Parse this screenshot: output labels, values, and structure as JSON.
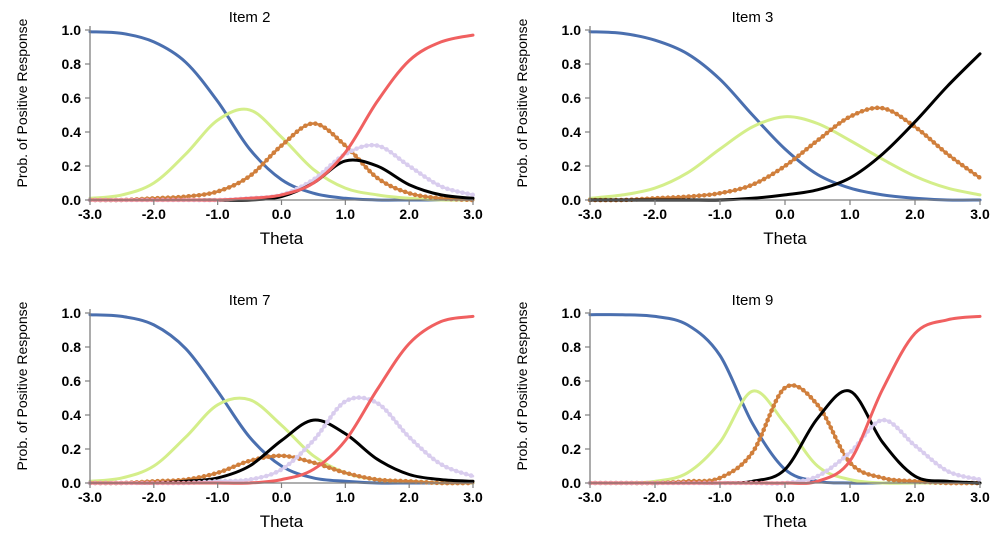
{
  "chart_data": [
    {
      "type": "line",
      "title": "Item 2",
      "xlabel": "Theta",
      "ylabel": "Prob. of Positive Response",
      "xlim": [
        -3.0,
        3.0
      ],
      "ylim": [
        0.0,
        1.0
      ],
      "xticks": [
        "-3.0",
        "-2.0",
        "-1.0",
        "0.0",
        "1.0",
        "2.0",
        "3.0"
      ],
      "yticks": [
        "0.0",
        "0.2",
        "0.4",
        "0.6",
        "0.8",
        "1.0"
      ],
      "grid": false,
      "x": [
        -3.0,
        -2.5,
        -2.0,
        -1.5,
        -1.0,
        -0.5,
        0.0,
        0.5,
        1.0,
        1.5,
        2.0,
        2.5,
        3.0
      ],
      "series": [
        {
          "color": "#4a6faf",
          "marker": "none",
          "values": [
            0.99,
            0.98,
            0.93,
            0.81,
            0.58,
            0.3,
            0.12,
            0.04,
            0.01,
            0.0,
            0.0,
            0.0,
            0.0
          ]
        },
        {
          "color": "#d4ee8a",
          "marker": "none",
          "values": [
            0.01,
            0.03,
            0.1,
            0.27,
            0.47,
            0.53,
            0.37,
            0.18,
            0.07,
            0.03,
            0.01,
            0.0,
            0.0
          ]
        },
        {
          "color": "#d07f3c",
          "marker": "dots",
          "values": [
            0.0,
            0.0,
            0.01,
            0.02,
            0.05,
            0.14,
            0.32,
            0.45,
            0.32,
            0.13,
            0.04,
            0.01,
            0.0
          ]
        },
        {
          "color": "#d9cdee",
          "marker": "dots",
          "values": [
            0.0,
            0.0,
            0.0,
            0.0,
            0.0,
            0.01,
            0.03,
            0.12,
            0.27,
            0.32,
            0.2,
            0.08,
            0.03
          ]
        },
        {
          "color": "#000000",
          "marker": "none",
          "values": [
            0.0,
            0.0,
            0.0,
            0.0,
            0.0,
            0.0,
            0.02,
            0.1,
            0.23,
            0.2,
            0.09,
            0.03,
            0.01
          ]
        },
        {
          "color": "#f06060",
          "marker": "none",
          "values": [
            0.0,
            0.0,
            0.0,
            0.0,
            0.0,
            0.01,
            0.03,
            0.1,
            0.28,
            0.58,
            0.82,
            0.93,
            0.97
          ]
        }
      ]
    },
    {
      "type": "line",
      "title": "Item 3",
      "xlabel": "Theta",
      "ylabel": "Prob. of Positive Response",
      "xlim": [
        -3.0,
        3.0
      ],
      "ylim": [
        0.0,
        1.0
      ],
      "xticks": [
        "-3.0",
        "-2.0",
        "-1.0",
        "0.0",
        "1.0",
        "2.0",
        "3.0"
      ],
      "yticks": [
        "0.0",
        "0.2",
        "0.4",
        "0.6",
        "0.8",
        "1.0"
      ],
      "grid": false,
      "x": [
        -3.0,
        -2.5,
        -2.0,
        -1.5,
        -1.0,
        -0.5,
        0.0,
        0.5,
        1.0,
        1.5,
        2.0,
        2.5,
        3.0
      ],
      "series": [
        {
          "color": "#4a6faf",
          "marker": "none",
          "values": [
            0.99,
            0.98,
            0.94,
            0.86,
            0.71,
            0.5,
            0.3,
            0.15,
            0.07,
            0.03,
            0.01,
            0.0,
            0.0
          ]
        },
        {
          "color": "#d4ee8a",
          "marker": "none",
          "values": [
            0.01,
            0.03,
            0.07,
            0.16,
            0.3,
            0.43,
            0.49,
            0.45,
            0.35,
            0.24,
            0.14,
            0.07,
            0.03
          ]
        },
        {
          "color": "#d07f3c",
          "marker": "dots",
          "values": [
            0.0,
            0.0,
            0.01,
            0.02,
            0.04,
            0.09,
            0.2,
            0.35,
            0.49,
            0.54,
            0.43,
            0.27,
            0.13
          ]
        },
        {
          "color": "#000000",
          "marker": "none",
          "values": [
            0.0,
            0.0,
            0.0,
            0.0,
            0.0,
            0.01,
            0.03,
            0.06,
            0.13,
            0.27,
            0.46,
            0.67,
            0.86
          ]
        }
      ]
    },
    {
      "type": "line",
      "title": "Item 7",
      "xlabel": "Theta",
      "ylabel": "Prob. of Positive Response",
      "xlim": [
        -3.0,
        3.0
      ],
      "ylim": [
        0.0,
        1.0
      ],
      "xticks": [
        "-3.0",
        "-2.0",
        "-1.0",
        "0.0",
        "1.0",
        "2.0",
        "3.0"
      ],
      "yticks": [
        "0.0",
        "0.2",
        "0.4",
        "0.6",
        "0.8",
        "1.0"
      ],
      "grid": false,
      "x": [
        -3.0,
        -2.5,
        -2.0,
        -1.5,
        -1.0,
        -0.5,
        0.0,
        0.5,
        1.0,
        1.5,
        2.0,
        2.5,
        3.0
      ],
      "series": [
        {
          "color": "#4a6faf",
          "marker": "none",
          "values": [
            0.99,
            0.98,
            0.93,
            0.79,
            0.54,
            0.27,
            0.1,
            0.03,
            0.01,
            0.0,
            0.0,
            0.0,
            0.0
          ]
        },
        {
          "color": "#d4ee8a",
          "marker": "none",
          "values": [
            0.01,
            0.03,
            0.1,
            0.27,
            0.46,
            0.49,
            0.34,
            0.16,
            0.06,
            0.02,
            0.01,
            0.0,
            0.0
          ]
        },
        {
          "color": "#d07f3c",
          "marker": "dots",
          "values": [
            0.0,
            0.0,
            0.01,
            0.02,
            0.06,
            0.13,
            0.16,
            0.12,
            0.06,
            0.02,
            0.01,
            0.0,
            0.0
          ]
        },
        {
          "color": "#000000",
          "marker": "none",
          "values": [
            0.0,
            0.0,
            0.0,
            0.01,
            0.03,
            0.1,
            0.25,
            0.37,
            0.29,
            0.14,
            0.05,
            0.02,
            0.01
          ]
        },
        {
          "color": "#d9cdee",
          "marker": "dots",
          "values": [
            0.0,
            0.0,
            0.0,
            0.0,
            0.01,
            0.02,
            0.08,
            0.25,
            0.48,
            0.47,
            0.27,
            0.11,
            0.04
          ]
        },
        {
          "color": "#f06060",
          "marker": "none",
          "values": [
            0.0,
            0.0,
            0.0,
            0.0,
            0.0,
            0.0,
            0.02,
            0.08,
            0.25,
            0.55,
            0.82,
            0.95,
            0.98
          ]
        }
      ]
    },
    {
      "type": "line",
      "title": "Item 9",
      "xlabel": "Theta",
      "ylabel": "Prob. of Positive Response",
      "xlim": [
        -3.0,
        3.0
      ],
      "ylim": [
        0.0,
        1.0
      ],
      "xticks": [
        "-3.0",
        "-2.0",
        "-1.0",
        "0.0",
        "1.0",
        "2.0",
        "3.0"
      ],
      "yticks": [
        "0.0",
        "0.2",
        "0.4",
        "0.6",
        "0.8",
        "1.0"
      ],
      "grid": false,
      "x": [
        -3.0,
        -2.5,
        -2.0,
        -1.5,
        -1.0,
        -0.5,
        0.0,
        0.5,
        1.0,
        1.5,
        2.0,
        2.5,
        3.0
      ],
      "series": [
        {
          "color": "#4a6faf",
          "marker": "none",
          "values": [
            0.99,
            0.99,
            0.98,
            0.93,
            0.75,
            0.35,
            0.08,
            0.01,
            0.0,
            0.0,
            0.0,
            0.0,
            0.0
          ]
        },
        {
          "color": "#d4ee8a",
          "marker": "none",
          "values": [
            0.0,
            0.0,
            0.01,
            0.06,
            0.24,
            0.54,
            0.35,
            0.1,
            0.02,
            0.0,
            0.0,
            0.0,
            0.0
          ]
        },
        {
          "color": "#d07f3c",
          "marker": "dots",
          "values": [
            0.0,
            0.0,
            0.0,
            0.01,
            0.03,
            0.18,
            0.56,
            0.46,
            0.12,
            0.03,
            0.01,
            0.0,
            0.0
          ]
        },
        {
          "color": "#000000",
          "marker": "none",
          "values": [
            0.0,
            0.0,
            0.0,
            0.0,
            0.0,
            0.01,
            0.08,
            0.38,
            0.54,
            0.24,
            0.04,
            0.01,
            0.0
          ]
        },
        {
          "color": "#d9cdee",
          "marker": "dots",
          "values": [
            0.0,
            0.0,
            0.0,
            0.0,
            0.0,
            0.0,
            0.0,
            0.04,
            0.18,
            0.37,
            0.22,
            0.07,
            0.02
          ]
        },
        {
          "color": "#f06060",
          "marker": "none",
          "values": [
            0.0,
            0.0,
            0.0,
            0.0,
            0.0,
            0.0,
            0.0,
            0.01,
            0.13,
            0.55,
            0.88,
            0.96,
            0.98
          ]
        }
      ]
    }
  ]
}
